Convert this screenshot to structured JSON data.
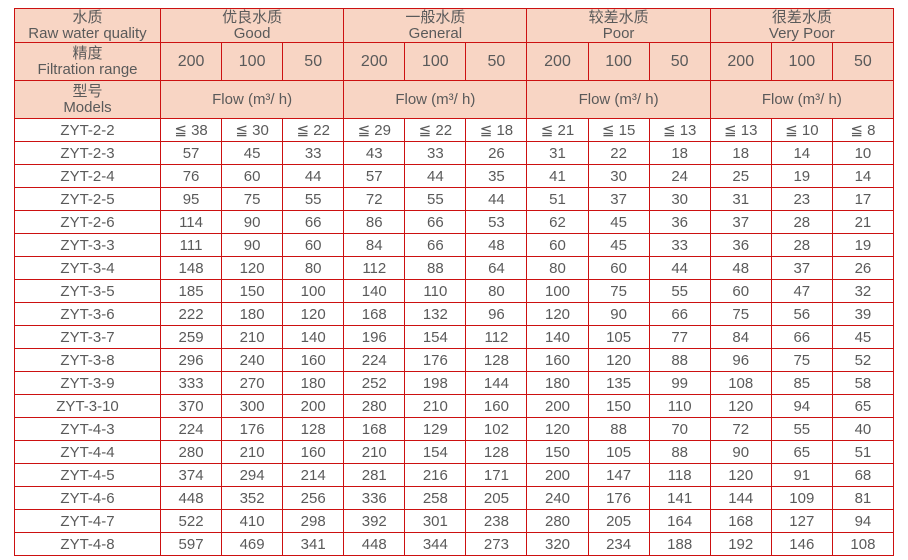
{
  "table": {
    "header": {
      "water_quality": {
        "zh": "水质",
        "en": "Raw water quality"
      },
      "filtration_range": {
        "zh": "精度",
        "en": "Filtration range"
      },
      "models": {
        "zh": "型号",
        "en": "Models"
      },
      "groups": [
        {
          "zh": "优良水质",
          "en": "Good"
        },
        {
          "zh": "一般水质",
          "en": "General"
        },
        {
          "zh": "较差水质",
          "en": "Poor"
        },
        {
          "zh": "很差水质",
          "en": "Very Poor"
        }
      ],
      "precisions": [
        "200",
        "100",
        "50"
      ],
      "flow_label": "Flow (m³/ h)"
    },
    "rows": [
      {
        "model": "ZYT-2-2",
        "values": [
          "≦ 38",
          "≦ 30",
          "≦ 22",
          "≦ 29",
          "≦ 22",
          "≦ 18",
          "≦ 21",
          "≦ 15",
          "≦ 13",
          "≦ 13",
          "≦ 10",
          "≦ 8"
        ]
      },
      {
        "model": "ZYT-2-3",
        "values": [
          57,
          45,
          33,
          43,
          33,
          26,
          31,
          22,
          18,
          18,
          14,
          10
        ]
      },
      {
        "model": "ZYT-2-4",
        "values": [
          76,
          60,
          44,
          57,
          44,
          35,
          41,
          30,
          24,
          25,
          19,
          14
        ]
      },
      {
        "model": "ZYT-2-5",
        "values": [
          95,
          75,
          55,
          72,
          55,
          44,
          51,
          37,
          30,
          31,
          23,
          17
        ]
      },
      {
        "model": "ZYT-2-6",
        "values": [
          114,
          90,
          66,
          86,
          66,
          53,
          62,
          45,
          36,
          37,
          28,
          21
        ]
      },
      {
        "model": "ZYT-3-3",
        "values": [
          111,
          90,
          60,
          84,
          66,
          48,
          60,
          45,
          33,
          36,
          28,
          19
        ]
      },
      {
        "model": "ZYT-3-4",
        "values": [
          148,
          120,
          80,
          112,
          88,
          64,
          80,
          60,
          44,
          48,
          37,
          26
        ]
      },
      {
        "model": "ZYT-3-5",
        "values": [
          185,
          150,
          100,
          140,
          110,
          80,
          100,
          75,
          55,
          60,
          47,
          32
        ]
      },
      {
        "model": "ZYT-3-6",
        "values": [
          222,
          180,
          120,
          168,
          132,
          96,
          120,
          90,
          66,
          75,
          56,
          39
        ]
      },
      {
        "model": "ZYT-3-7",
        "values": [
          259,
          210,
          140,
          196,
          154,
          112,
          140,
          105,
          77,
          84,
          66,
          45
        ]
      },
      {
        "model": "ZYT-3-8",
        "values": [
          296,
          240,
          160,
          224,
          176,
          128,
          160,
          120,
          88,
          96,
          75,
          52
        ]
      },
      {
        "model": "ZYT-3-9",
        "values": [
          333,
          270,
          180,
          252,
          198,
          144,
          180,
          135,
          99,
          108,
          85,
          58
        ]
      },
      {
        "model": "ZYT-3-10",
        "values": [
          370,
          300,
          200,
          280,
          210,
          160,
          200,
          150,
          110,
          120,
          94,
          65
        ]
      },
      {
        "model": "ZYT-4-3",
        "values": [
          224,
          176,
          128,
          168,
          129,
          102,
          120,
          88,
          70,
          72,
          55,
          40
        ]
      },
      {
        "model": "ZYT-4-4",
        "values": [
          280,
          210,
          160,
          210,
          154,
          128,
          150,
          105,
          88,
          90,
          65,
          51
        ]
      },
      {
        "model": "ZYT-4-5",
        "values": [
          374,
          294,
          214,
          281,
          216,
          171,
          200,
          147,
          118,
          120,
          91,
          68
        ]
      },
      {
        "model": "ZYT-4-6",
        "values": [
          448,
          352,
          256,
          336,
          258,
          205,
          240,
          176,
          141,
          144,
          109,
          81
        ]
      },
      {
        "model": "ZYT-4-7",
        "values": [
          522,
          410,
          298,
          392,
          301,
          238,
          280,
          205,
          164,
          168,
          127,
          94
        ]
      },
      {
        "model": "ZYT-4-8",
        "values": [
          597,
          469,
          341,
          448,
          344,
          273,
          320,
          234,
          188,
          192,
          146,
          108
        ]
      }
    ]
  },
  "colors": {
    "border": "#cc1111",
    "header_bg": "#f8d5c4",
    "text": "#5a5a5a",
    "page_bg": "#ffffff"
  }
}
